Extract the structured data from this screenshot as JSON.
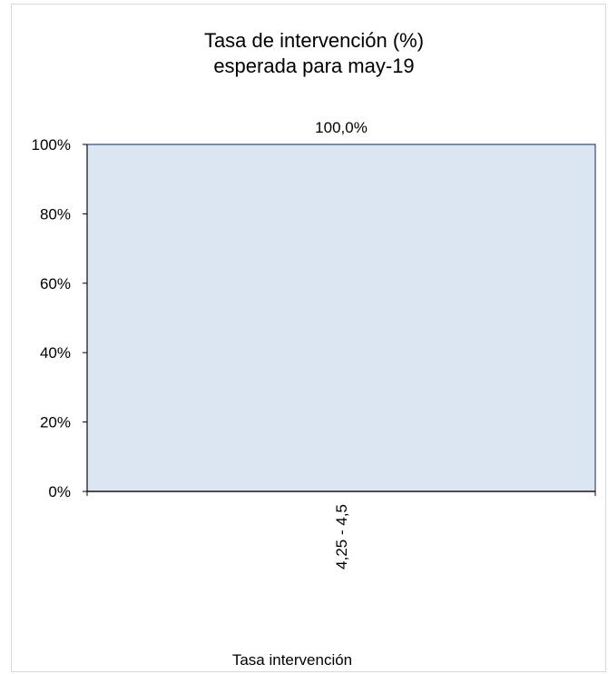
{
  "chart_data": {
    "type": "bar",
    "title_lines": [
      "Tasa de intervención  (%)",
      "esperada para may-19"
    ],
    "categories": [
      "4,25 - 4,5"
    ],
    "values": [
      100.0
    ],
    "data_labels": [
      "100,0%"
    ],
    "xlabel": "Tasa intervención",
    "ylabel": "",
    "ylim": [
      0,
      100
    ],
    "yticks": [
      0,
      20,
      40,
      60,
      80,
      100
    ],
    "ytick_labels": [
      "0%",
      "20%",
      "40%",
      "60%",
      "80%",
      "100%"
    ],
    "grid": false,
    "legend": "none",
    "colors": {
      "bar_fill": "#dce6f2",
      "bar_stroke": "#2e4a7a",
      "axis": "#000000"
    }
  }
}
